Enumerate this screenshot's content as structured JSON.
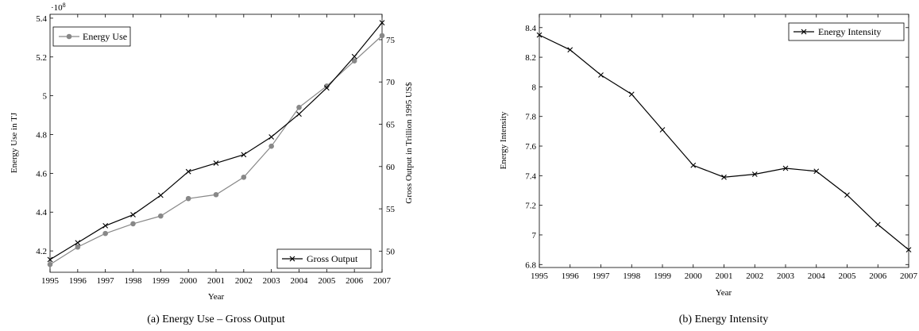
{
  "chart_data": [
    {
      "type": "line",
      "caption": "(a) Energy Use – Gross Output",
      "xlabel": "Year",
      "ylabel_left": "Energy Use in TJ",
      "ylabel_right": "Gross Output in Trillion 1995 US$",
      "left_multiplier": "·10",
      "left_multiplier_exp": "8",
      "x": [
        1995,
        1996,
        1997,
        1998,
        1999,
        2000,
        2001,
        2002,
        2003,
        2004,
        2005,
        2006,
        2007
      ],
      "xlim": [
        1995,
        2007
      ],
      "ylim_left": [
        4.09,
        5.42
      ],
      "ylim_right": [
        47.5,
        78.0
      ],
      "yticks_left": [
        "4.2",
        "4.4",
        "4.6",
        "4.8",
        "5",
        "5.2",
        "5.4"
      ],
      "yticks_left_values": [
        4.2,
        4.4,
        4.6,
        4.8,
        5.0,
        5.2,
        5.4
      ],
      "yticks_right": [
        "50",
        "55",
        "60",
        "65",
        "70",
        "75"
      ],
      "yticks_right_values": [
        50,
        55,
        60,
        65,
        70,
        75
      ],
      "series": [
        {
          "name": "Energy Use",
          "axis": "left",
          "marker": "circle",
          "color": "#888888",
          "legend_position": "top-left",
          "values": [
            4.13,
            4.22,
            4.29,
            4.34,
            4.38,
            4.47,
            4.49,
            4.58,
            4.74,
            4.94,
            5.05,
            5.18,
            5.31
          ]
        },
        {
          "name": "Gross Output",
          "axis": "right",
          "marker": "x",
          "color": "#000000",
          "legend_position": "bottom-right",
          "values": [
            49.0,
            51.0,
            53.0,
            54.3,
            56.6,
            59.4,
            60.4,
            61.4,
            63.5,
            66.2,
            69.3,
            73.0,
            77.0
          ]
        }
      ]
    },
    {
      "type": "line",
      "caption": "(b) Energy Intensity",
      "xlabel": "Year",
      "ylabel": "Energy Intensity",
      "x": [
        1995,
        1996,
        1997,
        1998,
        1999,
        2000,
        2001,
        2002,
        2003,
        2004,
        2005,
        2006,
        2007
      ],
      "xlim": [
        1995,
        2007
      ],
      "ylim": [
        6.78,
        8.49
      ],
      "yticks": [
        "6.8",
        "7",
        "7.2",
        "7.4",
        "7.6",
        "7.8",
        "8",
        "8.2",
        "8.4"
      ],
      "yticks_values": [
        6.8,
        7.0,
        7.2,
        7.4,
        7.6,
        7.8,
        8.0,
        8.2,
        8.4
      ],
      "series": [
        {
          "name": "Energy Intensity",
          "marker": "x",
          "color": "#000000",
          "legend_position": "top-right",
          "values": [
            8.35,
            8.25,
            8.08,
            7.95,
            7.71,
            7.47,
            7.39,
            7.41,
            7.45,
            7.43,
            7.27,
            7.07,
            6.9
          ]
        }
      ]
    }
  ]
}
